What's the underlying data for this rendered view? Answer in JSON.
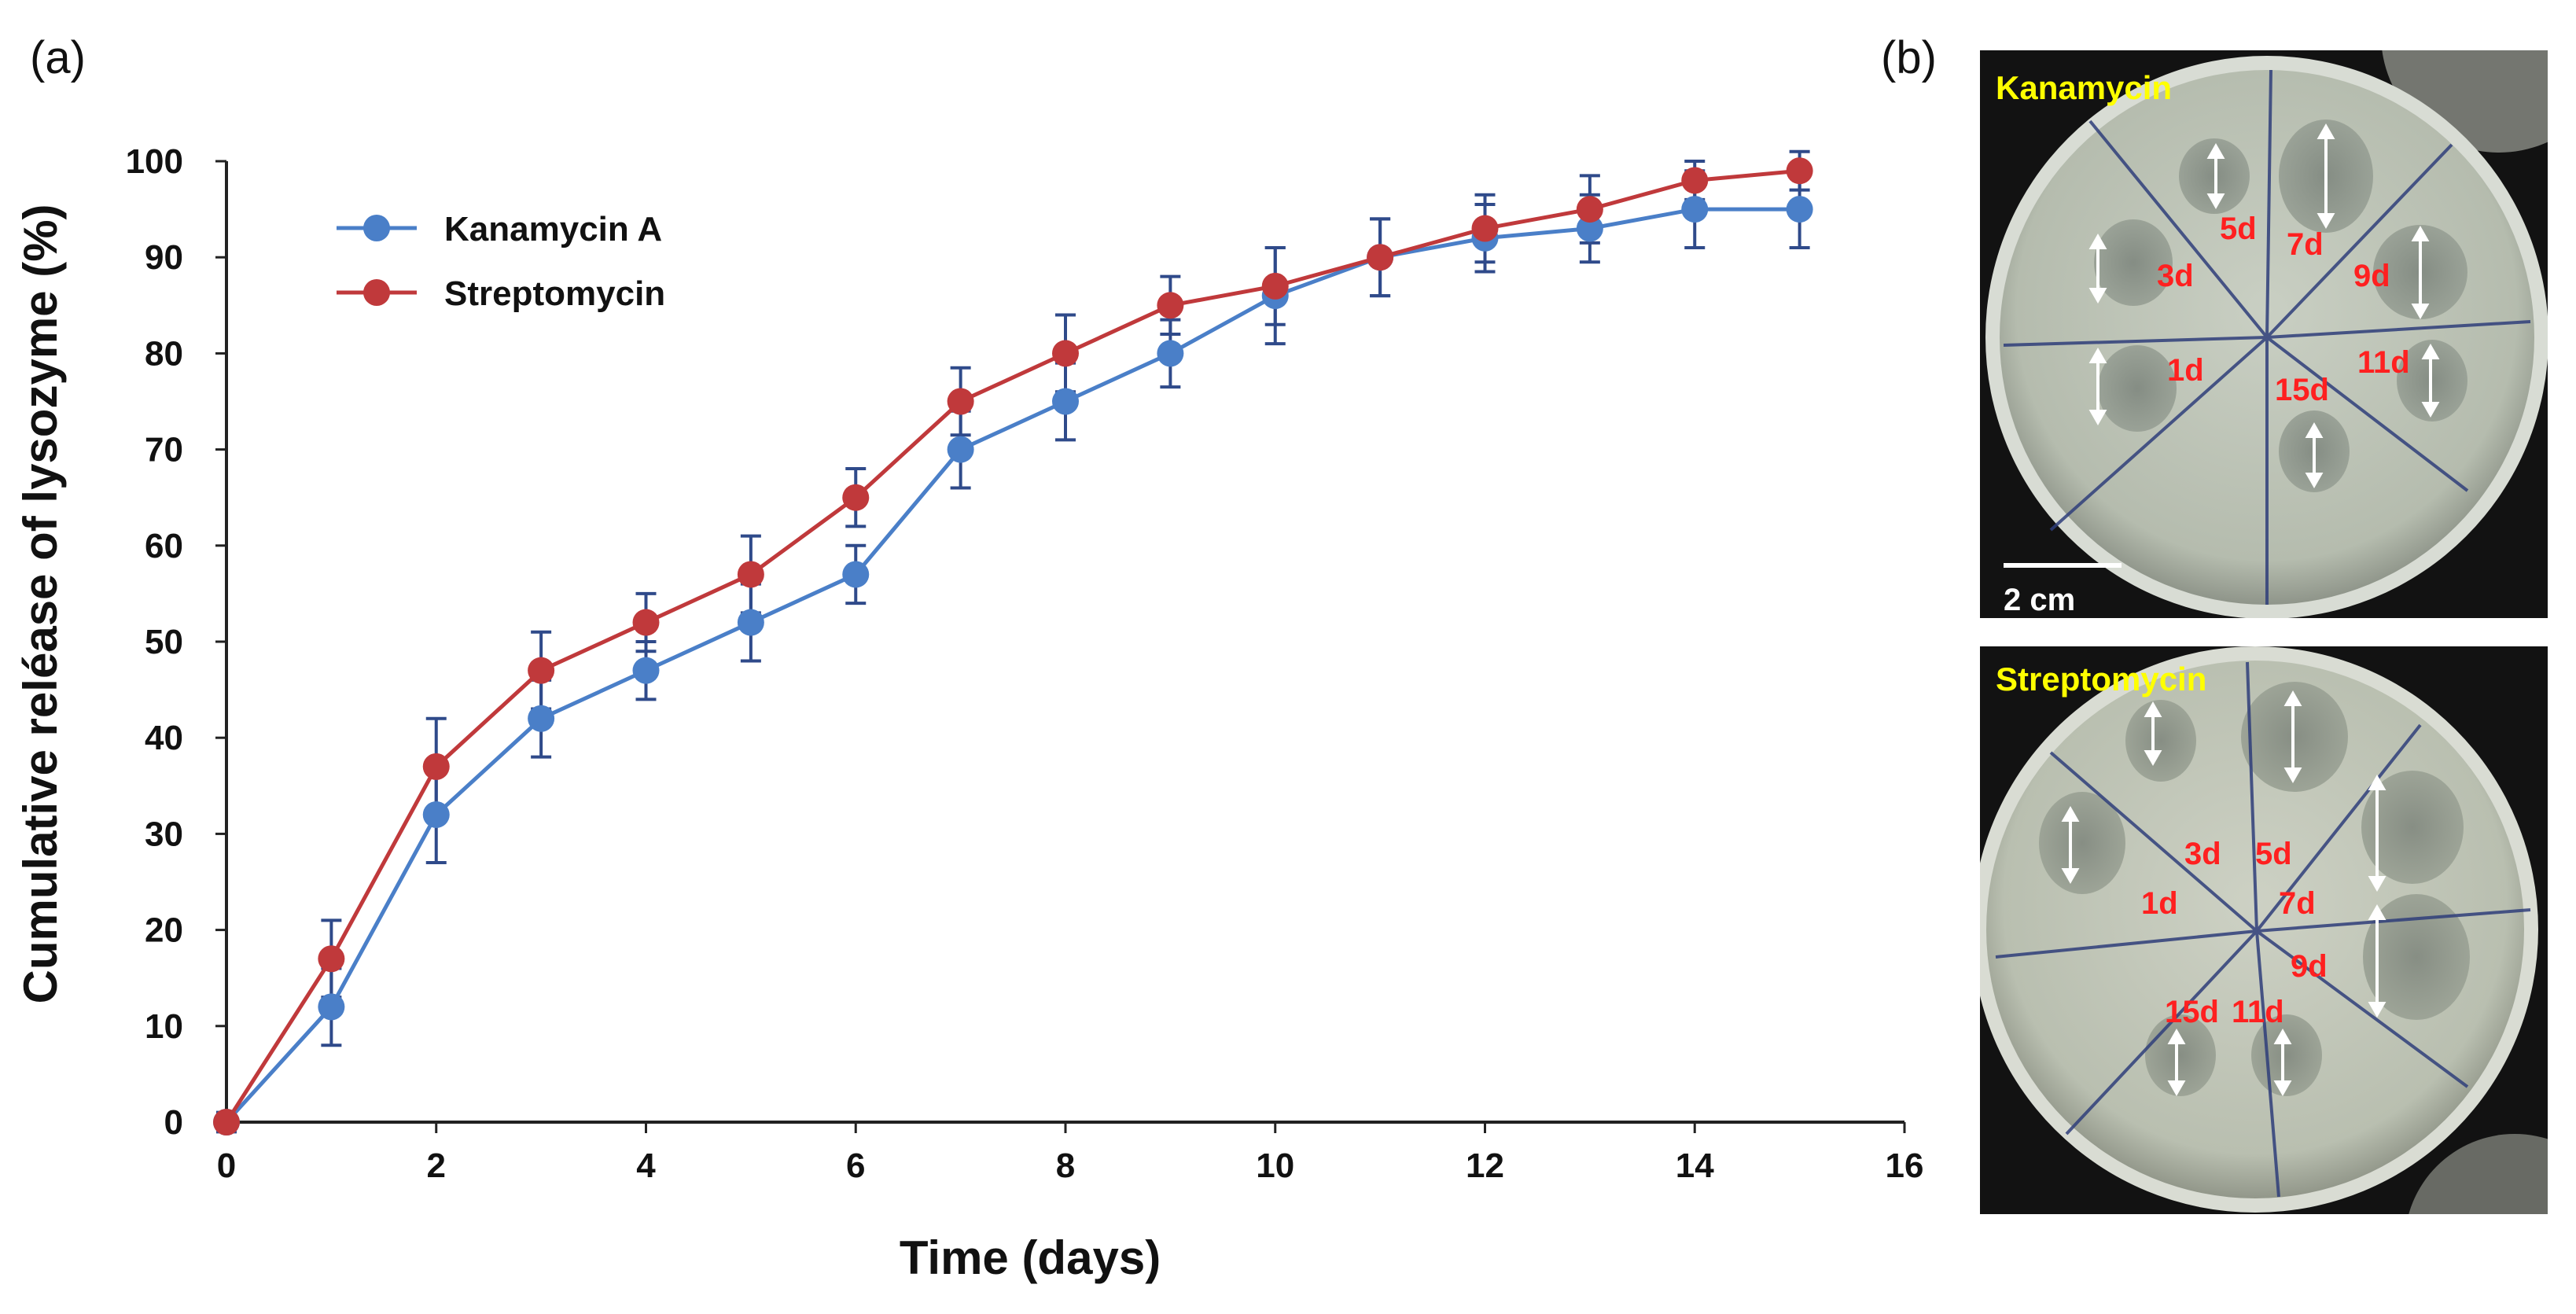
{
  "panel_a_label": "(a)",
  "panel_b_label": "(b)",
  "chart_data": {
    "type": "line",
    "title": "",
    "xlabel": "Time (days)",
    "ylabel": "Cumulative reléase of lysozyme (%)",
    "xlim": [
      0,
      16
    ],
    "ylim": [
      0,
      100
    ],
    "xticks": [
      0,
      2,
      4,
      6,
      8,
      10,
      12,
      14,
      16
    ],
    "yticks": [
      0,
      10,
      20,
      30,
      40,
      50,
      60,
      70,
      80,
      90,
      100
    ],
    "grid": false,
    "legend_position": "top-left",
    "x": [
      0,
      1,
      2,
      3,
      4,
      5,
      6,
      7,
      8,
      9,
      10,
      11,
      12,
      13,
      14,
      15
    ],
    "series": [
      {
        "name": "Kanamycin A",
        "color": "#4a7fc8",
        "values": [
          0,
          12,
          32,
          42,
          47,
          52,
          57,
          70,
          75,
          80,
          86,
          90,
          92,
          93,
          95,
          95
        ],
        "errors": [
          1,
          4,
          5,
          4,
          3,
          4,
          3,
          4,
          4,
          3.5,
          5,
          4,
          3.5,
          3.5,
          4,
          4
        ]
      },
      {
        "name": "Streptomycin",
        "color": "#c0393b",
        "values": [
          0,
          17,
          37,
          47,
          52,
          57,
          65,
          75,
          80,
          85,
          87,
          90,
          93,
          95,
          98,
          99
        ],
        "errors": [
          1,
          4,
          5,
          4,
          3,
          4,
          3,
          3.5,
          4,
          3,
          4,
          4,
          3.5,
          3.5,
          2,
          2
        ]
      }
    ],
    "error_bar_color": "#2f4a8a"
  },
  "photos": [
    {
      "label": "Kanamycin",
      "scale_bar": "2 cm",
      "days": [
        "1d",
        "3d",
        "5d",
        "7d",
        "9d",
        "11d",
        "15d"
      ],
      "label_color": "#ffff00",
      "day_color": "#ff2020"
    },
    {
      "label": "Streptomycin",
      "scale_bar": "",
      "days": [
        "1d",
        "3d",
        "5d",
        "7d",
        "9d",
        "11d",
        "15d"
      ],
      "label_color": "#ffff00",
      "day_color": "#ff2020"
    }
  ]
}
